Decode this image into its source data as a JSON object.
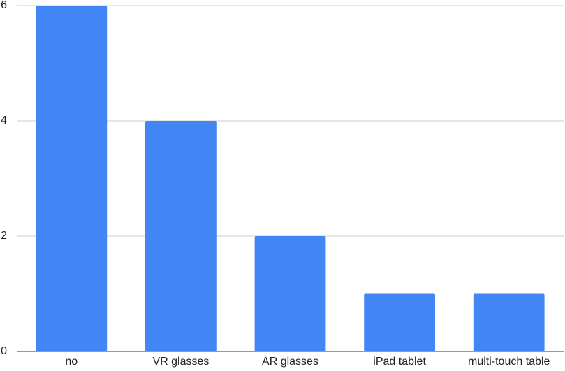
{
  "chart_data": {
    "type": "bar",
    "title": "",
    "xlabel": "",
    "ylabel": "",
    "categories": [
      "no",
      "VR glasses",
      "AR glasses",
      "iPad tablet",
      "multi-touch table"
    ],
    "values": [
      6,
      4,
      2,
      1,
      1
    ],
    "ylim": [
      0,
      6
    ],
    "yticks": [
      "0",
      "2",
      "4",
      "6"
    ],
    "grid": true,
    "legend": "none",
    "colors": {
      "bar": "#4285f4",
      "grid": "#cccccc",
      "axis": "#333333",
      "text": "#222222"
    }
  }
}
